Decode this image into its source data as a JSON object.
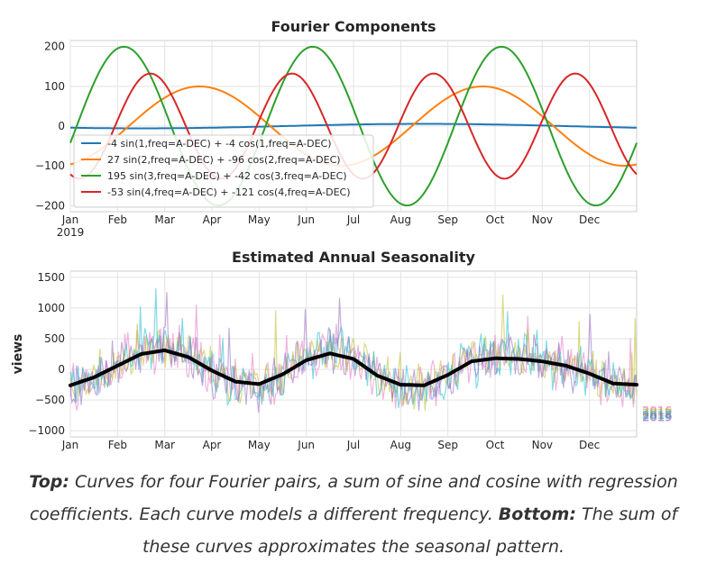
{
  "chart_data": [
    {
      "type": "line",
      "title": "Fourier Components",
      "x_ticks": [
        "Jan",
        "Feb",
        "Mar",
        "Apr",
        "May",
        "Jun",
        "Jul",
        "Aug",
        "Sep",
        "Oct",
        "Nov",
        "Dec"
      ],
      "x_tick_year": "2019",
      "xlim_months": [
        0,
        12
      ],
      "ylim": [
        -215,
        215
      ],
      "yticks": [
        200,
        100,
        0,
        -100,
        -200
      ],
      "ytick_labels": [
        "200",
        "100",
        "0",
        "−100",
        "−200"
      ],
      "grid": true,
      "legend_position": "lower-left",
      "series": [
        {
          "name": "-4 sin(1,freq=A-DEC) + -4 cos(1,freq=A-DEC)",
          "freq": 1,
          "sin_coef": -4,
          "cos_coef": -4,
          "color": "#1f77b4"
        },
        {
          "name": "27 sin(2,freq=A-DEC) + -96 cos(2,freq=A-DEC)",
          "freq": 2,
          "sin_coef": 27,
          "cos_coef": -96,
          "color": "#ff7f0e"
        },
        {
          "name": "195 sin(3,freq=A-DEC) + -42 cos(3,freq=A-DEC)",
          "freq": 3,
          "sin_coef": 195,
          "cos_coef": -42,
          "color": "#2ca02c"
        },
        {
          "name": "-53 sin(4,freq=A-DEC) + -121 cos(4,freq=A-DEC)",
          "freq": 4,
          "sin_coef": -53,
          "cos_coef": -121,
          "color": "#d62728"
        }
      ]
    },
    {
      "type": "line",
      "title": "Estimated Annual Seasonality",
      "ylabel": "views",
      "x_ticks": [
        "Jan",
        "Feb",
        "Mar",
        "Apr",
        "May",
        "Jun",
        "Jul",
        "Aug",
        "Sep",
        "Oct",
        "Nov",
        "Dec"
      ],
      "xlim_months": [
        0,
        12
      ],
      "ylim": [
        -1100,
        1600
      ],
      "yticks": [
        1500,
        1000,
        500,
        0,
        -500,
        -1000
      ],
      "ytick_labels": [
        "1500",
        "1000",
        "500",
        "0",
        "−500",
        "−1000"
      ],
      "grid": true,
      "series": [
        {
          "name": "2016",
          "color": "#e377c2"
        },
        {
          "name": "2017",
          "color": "#bcbd22"
        },
        {
          "name": "2018",
          "color": "#17becf"
        },
        {
          "name": "2019",
          "color": "#9467bd"
        }
      ],
      "estimate": {
        "color": "#000000",
        "x_months": [
          0,
          0.5,
          1,
          1.5,
          2,
          2.5,
          3,
          3.5,
          4,
          4.5,
          5,
          5.5,
          6,
          6.5,
          7,
          7.5,
          8,
          8.5,
          9,
          9.5,
          10,
          10.5,
          11,
          11.5,
          12
        ],
        "values": [
          -260,
          -130,
          60,
          250,
          310,
          200,
          -20,
          -200,
          -240,
          -80,
          150,
          260,
          170,
          -100,
          -250,
          -260,
          -90,
          130,
          180,
          170,
          130,
          60,
          -70,
          -230,
          -250
        ]
      }
    }
  ],
  "caption": {
    "bold1": "Top:",
    "text1": " Curves for four Fourier pairs, a sum of sine and cosine with regression coefficients. Each curve models a different frequency. ",
    "bold2": "Bottom:",
    "text2": " The sum of these curves approximates the seasonal pattern."
  }
}
